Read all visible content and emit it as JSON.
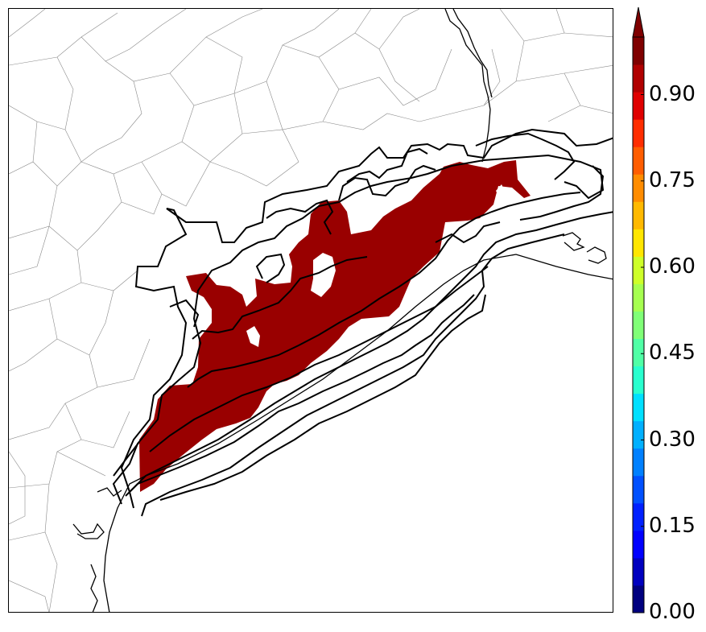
{
  "colorbar": {
    "colors": [
      "#00007f",
      "#0000bf",
      "#0000ff",
      "#0020ff",
      "#0050ff",
      "#0080ff",
      "#00b0ff",
      "#00e0ff",
      "#29ffce",
      "#50ffa6",
      "#80ff77",
      "#a6ff50",
      "#ceff29",
      "#ffe600",
      "#ffb900",
      "#ff8c00",
      "#ff5d00",
      "#ff2d00",
      "#df0000",
      "#b00000",
      "#7f0000"
    ],
    "ticks": [
      "0.00",
      "0.15",
      "0.30",
      "0.45",
      "0.60",
      "0.75",
      "0.90"
    ],
    "extend": "max"
  },
  "map": {
    "fill_color": "#990000",
    "contour_color": "#000000",
    "county_line_color": "#8a8a8a"
  }
}
